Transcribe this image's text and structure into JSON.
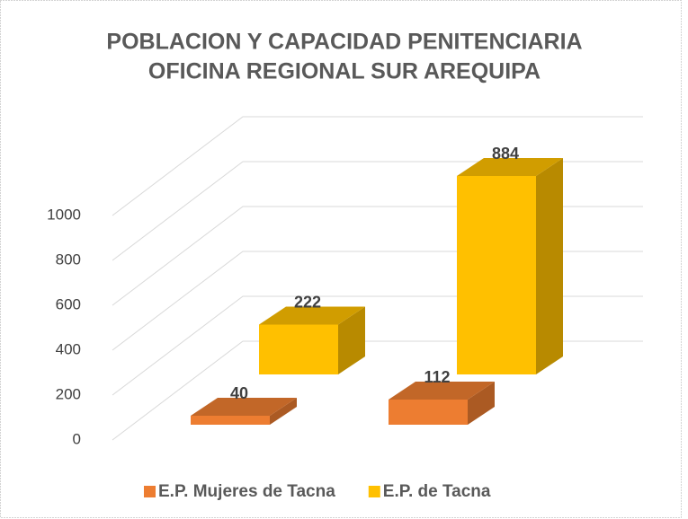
{
  "chart_data": {
    "type": "bar3d",
    "title": [
      "POBLACION Y CAPACIDAD PENITENCIARIA",
      "OFICINA REGIONAL SUR AREQUIPA"
    ],
    "categories": [
      null,
      null
    ],
    "series": [
      {
        "name": "E.P. Mujeres de Tacna",
        "color": "#ED7D31",
        "values": [
          40,
          112
        ]
      },
      {
        "name": "E.P. de Tacna",
        "color": "#FFC000",
        "values": [
          222,
          884
        ]
      }
    ],
    "ylim": [
      0,
      1000
    ],
    "yticks": [
      0,
      200,
      400,
      600,
      800,
      1000
    ],
    "grid": true,
    "legend": "bottom"
  }
}
